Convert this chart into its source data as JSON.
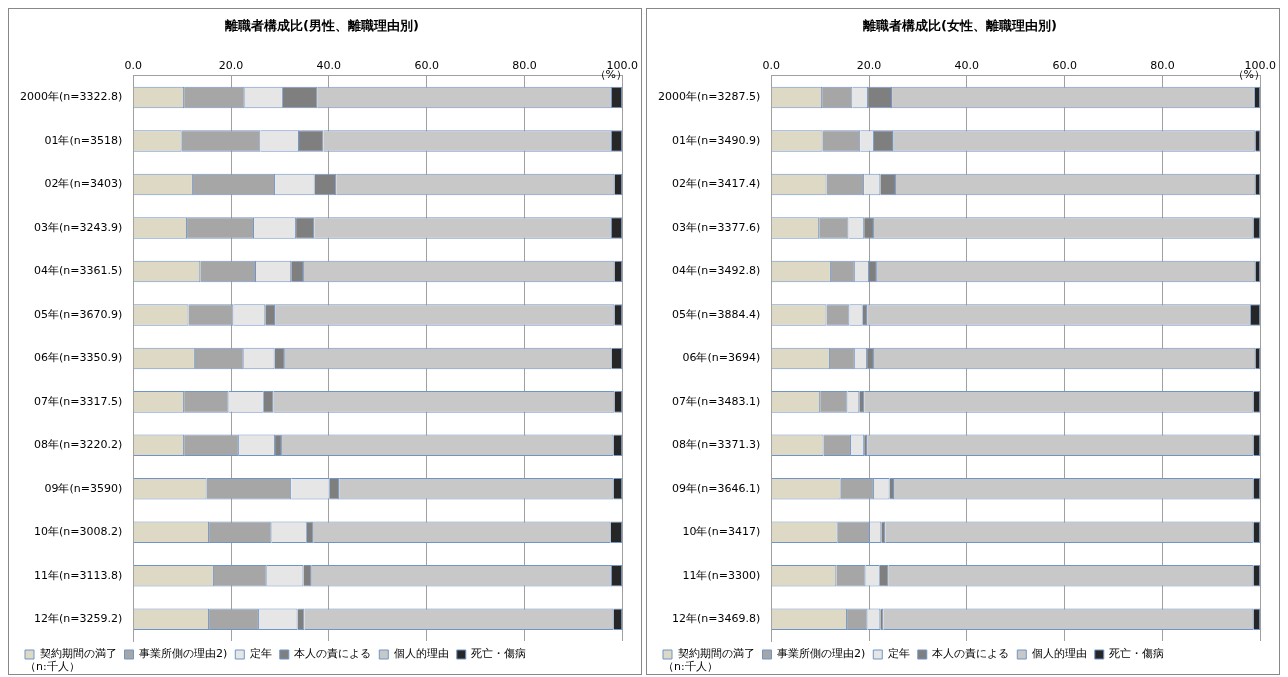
{
  "chart_data": [
    {
      "type": "bar",
      "orientation": "horizontal",
      "stacked": true,
      "title": "離職者構成比(男性、離職理由別)",
      "annotations": [
        "（%）",
        "（n:千人）"
      ],
      "categories": [
        "2000年(n=3322.8)",
        "01年(n=3518)",
        "02年(n=3403)",
        "03年(n=3243.9)",
        "04年(n=3361.5)",
        "05年(n=3670.9)",
        "06年(n=3350.9)",
        "07年(n=3317.5)",
        "08年(n=3220.2)",
        "09年(n=3590)",
        "10年(n=3008.2)",
        "11年(n=3113.8)",
        "12年(n=3259.2)"
      ],
      "series": [
        {
          "name": "契約期間の満了",
          "color": "#ddd9c4",
          "values": [
            10.4,
            9.9,
            12.2,
            11.0,
            13.7,
            11.3,
            12.6,
            10.4,
            10.4,
            15.0,
            15.5,
            16.5,
            15.5
          ]
        },
        {
          "name": "事業所側の理由2)",
          "color": "#a6a6a6",
          "values": [
            12.4,
            16.1,
            16.8,
            13.7,
            11.4,
            9.2,
            10.0,
            9.1,
            11.2,
            17.3,
            12.8,
            10.8,
            10.2
          ]
        },
        {
          "name": "定年",
          "color": "#e6e6e6",
          "values": [
            7.8,
            7.9,
            8.1,
            8.6,
            7.2,
            6.5,
            6.3,
            7.2,
            7.4,
            7.9,
            7.2,
            7.5,
            7.9
          ]
        },
        {
          "name": "本人の責による",
          "color": "#7f7f7f",
          "values": [
            7.1,
            5.0,
            4.4,
            3.7,
            2.6,
            2.0,
            2.1,
            2.0,
            1.4,
            1.9,
            1.4,
            1.7,
            1.4
          ]
        },
        {
          "name": "個人的理由",
          "color": "#c8c8c8",
          "values": [
            60.2,
            59.0,
            56.9,
            60.9,
            63.5,
            69.4,
            66.8,
            69.7,
            67.8,
            56.1,
            60.7,
            61.4,
            63.2
          ]
        },
        {
          "name": "死亡・傷病",
          "color": "#262626",
          "values": [
            2.1,
            2.1,
            1.6,
            2.1,
            1.6,
            1.6,
            2.2,
            1.6,
            1.8,
            1.8,
            2.4,
            2.1,
            1.8
          ]
        }
      ],
      "xlim": [
        0,
        100
      ],
      "xticks": [
        {
          "value": 0,
          "label": "0.0"
        },
        {
          "value": 20,
          "label": "20.0"
        },
        {
          "value": 40,
          "label": "40.0"
        },
        {
          "value": 60,
          "label": "60.0"
        },
        {
          "value": 80,
          "label": "80.0"
        },
        {
          "value": 100,
          "label": "100.0"
        }
      ],
      "grid": "x",
      "legend": "bottom"
    },
    {
      "type": "bar",
      "orientation": "horizontal",
      "stacked": true,
      "title": "離職者構成比(女性、離職理由別)",
      "annotations": [
        "（%）",
        "（n:千人）"
      ],
      "categories": [
        "2000年(n=3287.5)",
        "01年(n=3490.9)",
        "02年(n=3417.4)",
        "03年(n=3377.6)",
        "04年(n=3492.8)",
        "05年(n=3884.4)",
        "06年(n=3694)",
        "07年(n=3483.1)",
        "08年(n=3371.3)",
        "09年(n=3646.1)",
        "10年(n=3417)",
        "11年(n=3300)",
        "12年(n=3469.8)"
      ],
      "series": [
        {
          "name": "契約期間の満了",
          "color": "#ddd9c4",
          "values": [
            10.4,
            10.5,
            11.3,
            9.8,
            12.2,
            11.3,
            12.0,
            10.0,
            10.7,
            14.2,
            13.6,
            13.3,
            15.5
          ]
        },
        {
          "name": "事業所側の理由2)",
          "color": "#a6a6a6",
          "values": [
            6.2,
            7.7,
            7.7,
            6.0,
            4.9,
            4.7,
            5.1,
            5.6,
            5.6,
            6.8,
            6.6,
            6.0,
            4.2
          ]
        },
        {
          "name": "定年",
          "color": "#e6e6e6",
          "values": [
            3.2,
            2.8,
            3.3,
            3.2,
            2.9,
            2.7,
            2.5,
            2.4,
            2.7,
            3.2,
            2.3,
            2.9,
            2.6
          ]
        },
        {
          "name": "本人の責による",
          "color": "#7f7f7f",
          "values": [
            4.9,
            3.9,
            3.2,
            2.0,
            1.6,
            0.9,
            1.4,
            1.0,
            0.6,
            0.9,
            0.8,
            1.8,
            0.6
          ]
        },
        {
          "name": "個人的理由",
          "color": "#c8c8c8",
          "values": [
            74.2,
            74.1,
            73.5,
            77.6,
            77.4,
            78.5,
            78.0,
            79.6,
            79.0,
            73.5,
            75.3,
            74.6,
            75.7
          ]
        },
        {
          "name": "死亡・傷病",
          "color": "#262626",
          "values": [
            1.1,
            1.0,
            1.0,
            1.4,
            1.0,
            1.9,
            1.0,
            1.4,
            1.4,
            1.4,
            1.4,
            1.4,
            1.4
          ]
        }
      ],
      "xlim": [
        0,
        100
      ],
      "xticks": [
        {
          "value": 0,
          "label": "0.0"
        },
        {
          "value": 20,
          "label": "20.0"
        },
        {
          "value": 40,
          "label": "40.0"
        },
        {
          "value": 60,
          "label": "60.0"
        },
        {
          "value": 80,
          "label": "80.0"
        },
        {
          "value": 100,
          "label": "100.0"
        }
      ],
      "grid": "x",
      "legend": "bottom"
    }
  ]
}
